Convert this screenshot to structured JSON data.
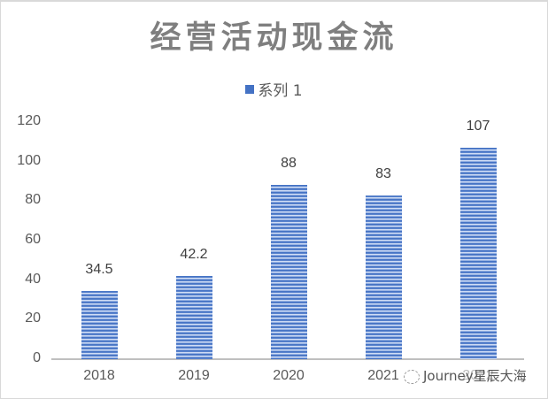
{
  "chart_data": {
    "type": "bar",
    "title": "经营活动现金流",
    "legend": [
      "系列 1"
    ],
    "legend_position": "top",
    "categories": [
      "2018",
      "2019",
      "2020",
      "2021",
      "2022"
    ],
    "series": [
      {
        "name": "系列 1",
        "values": [
          34.5,
          42.2,
          88,
          83,
          107
        ]
      }
    ],
    "data_labels": [
      "34.5",
      "42.2",
      "88",
      "83",
      "107"
    ],
    "xlabel": "",
    "ylabel": "",
    "ylim": [
      0,
      120
    ],
    "yticks": [
      "0",
      "20",
      "40",
      "60",
      "80",
      "100",
      "120"
    ],
    "grid": false,
    "bar_color": "#4472c4"
  },
  "watermark": "Journey星辰大海"
}
